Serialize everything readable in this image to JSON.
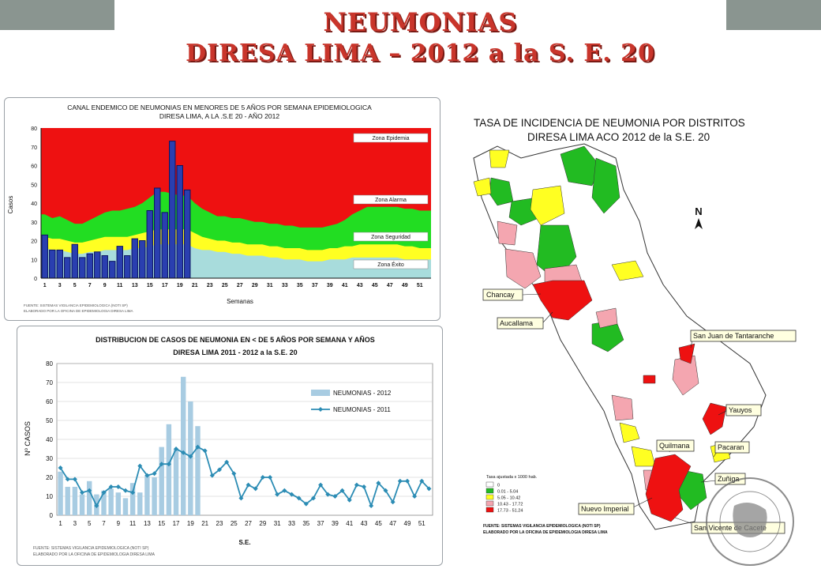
{
  "header": {
    "title_line1": "NEUMONIAS",
    "title_line2": "DIRESA LIMA – 2012 a la  S. E. 20"
  },
  "endemic_panel": {
    "source_line1": "FUENTE: SISTEMAS VIGILANCIA EPIDEMIOLOGICA (NOTI SP)",
    "source_line2": "ELABORADO POR LA OFICINA DE EPIDEMIOLOGIA DIRESA LIMA"
  },
  "distribution_panel": {
    "source_line1": "FUENTE: SISTEMAS VIGILANCIA EPIDEMIOLOGICA (NOTI SP)",
    "source_line2": "ELABORADO POR LA OFICINA DE EPIDEMIOLOGIA DIRESA LIMA"
  },
  "map_panel": {
    "title_line1": "TASA DE INCIDENCIA DE NEUMONIA POR DISTRITOS",
    "title_line2": "DIRESA LIMA ACO 2012 de la S.E. 20",
    "north_symbol": "N",
    "legend_title": "Tasa ajustada x 1000 hab.",
    "legend_items": [
      {
        "label": "0",
        "color": "#ffffff"
      },
      {
        "label": "0.01 - 5.04",
        "color": "#22bb22"
      },
      {
        "label": "5.05 - 10.42",
        "color": "#ffff22"
      },
      {
        "label": "10.43 - 17.72",
        "color": "#f4a6b0"
      },
      {
        "label": "17.73 - 51.24",
        "color": "#ee1111"
      }
    ],
    "source_line1": "FUENTE: SISTEMAS VIGILANCIA EPIDEMIOLOGICA (NOTI SP)",
    "source_line2": "ELABORADO POR LA OFICINA DE EPIDEMIOLOGIA DIRESA LIMA",
    "callouts": [
      "Chancay",
      "Aucallama",
      "San Juan de Tantaranche",
      "Yauyos",
      "Quilmana",
      "Pacaran",
      "Zuñiga",
      "Nuevo Imperial",
      "San Vicente de Cacete"
    ],
    "seal_text": "RED NACIONAL DE EPIDEMIOLOGIA – RENACE"
  },
  "chart_data": [
    {
      "type": "area",
      "title": "CANAL ENDEMICO DE NEUMONIAS EN MENORES DE 5 AÑOS POR SEMANA EPIDEMIOLOGICA\nDIRESA LIMA, A LA .S.E 20 - AÑO 2012",
      "xlabel": "Semanas",
      "ylabel": "Casos",
      "ylim": [
        0,
        80
      ],
      "yticks": [
        0,
        10,
        20,
        30,
        40,
        50,
        60,
        70,
        80
      ],
      "x_ticks": [
        "1",
        "3",
        "5",
        "7",
        "9",
        "11",
        "13",
        "15",
        "17",
        "19",
        "21",
        "23",
        "25",
        "27",
        "29",
        "31",
        "33",
        "35",
        "37",
        "39",
        "41",
        "43",
        "45",
        "47",
        "49",
        "51"
      ],
      "weeks": [
        1,
        2,
        3,
        4,
        5,
        6,
        7,
        8,
        9,
        10,
        11,
        12,
        13,
        14,
        15,
        16,
        17,
        18,
        19,
        20,
        21,
        22,
        23,
        24,
        25,
        26,
        27,
        28,
        29,
        30,
        31,
        32,
        33,
        34,
        35,
        36,
        37,
        38,
        39,
        40,
        41,
        42,
        43,
        44,
        45,
        46,
        47,
        48,
        49,
        50,
        51,
        52
      ],
      "zones": [
        {
          "name": "Zona Epidemia",
          "color": "#ee1111"
        },
        {
          "name": "Zona Alarma",
          "color": "#22dd22"
        },
        {
          "name": "Zona Seguridad",
          "color": "#ffff22"
        },
        {
          "name": "Zona Éxito",
          "color": "#a8dcdc"
        }
      ],
      "exito": [
        16,
        15,
        15,
        14,
        13,
        13,
        14,
        14,
        15,
        15,
        15,
        15,
        16,
        16,
        17,
        18,
        18,
        18,
        18,
        18,
        16,
        15,
        15,
        14,
        14,
        13,
        13,
        12,
        12,
        12,
        11,
        11,
        10,
        10,
        10,
        9,
        9,
        9,
        10,
        10,
        10,
        11,
        11,
        11,
        11,
        11,
        11,
        11,
        10,
        10,
        10,
        10
      ],
      "seguridad": [
        22,
        21,
        21,
        20,
        19,
        19,
        20,
        21,
        22,
        22,
        22,
        22,
        23,
        24,
        25,
        26,
        26,
        26,
        26,
        26,
        24,
        22,
        21,
        20,
        20,
        19,
        19,
        18,
        18,
        18,
        17,
        17,
        16,
        16,
        16,
        15,
        15,
        15,
        16,
        16,
        17,
        17,
        18,
        18,
        18,
        18,
        18,
        18,
        17,
        17,
        16,
        16
      ],
      "alarma": [
        34,
        32,
        33,
        31,
        29,
        29,
        31,
        33,
        35,
        36,
        36,
        37,
        38,
        40,
        43,
        46,
        46,
        45,
        44,
        44,
        40,
        37,
        35,
        33,
        33,
        32,
        32,
        31,
        30,
        30,
        29,
        29,
        28,
        28,
        27,
        27,
        27,
        27,
        28,
        29,
        31,
        34,
        36,
        38,
        38,
        38,
        38,
        38,
        37,
        37,
        36,
        36
      ],
      "series": [
        {
          "name": "2012",
          "values": [
            23,
            15,
            15,
            11,
            18,
            11,
            13,
            14,
            12,
            9,
            17,
            12,
            21,
            20,
            36,
            48,
            35,
            73,
            60,
            47
          ]
        }
      ]
    },
    {
      "type": "bar",
      "title": "DISTRIBUCION DE CASOS DE NEUMONIA EN < DE 5 AÑOS POR SEMANA Y AÑOS\nDIRESA LIMA  2011 - 2012  a la S.E. 20",
      "xlabel": "S.E.",
      "ylabel": "Nº CASOS",
      "ylim": [
        0,
        80
      ],
      "yticks": [
        0,
        10,
        20,
        30,
        40,
        50,
        60,
        70,
        80
      ],
      "x_ticks": [
        "1",
        "3",
        "5",
        "7",
        "9",
        "11",
        "13",
        "15",
        "17",
        "19",
        "21",
        "23",
        "25",
        "27",
        "29",
        "31",
        "33",
        "35",
        "37",
        "39",
        "41",
        "43",
        "45",
        "47",
        "49",
        "51"
      ],
      "weeks": [
        1,
        2,
        3,
        4,
        5,
        6,
        7,
        8,
        9,
        10,
        11,
        12,
        13,
        14,
        15,
        16,
        17,
        18,
        19,
        20,
        21,
        22,
        23,
        24,
        25,
        26,
        27,
        28,
        29,
        30,
        31,
        32,
        33,
        34,
        35,
        36,
        37,
        38,
        39,
        40,
        41,
        42,
        43,
        44,
        45,
        46,
        47,
        48,
        49,
        50,
        51,
        52
      ],
      "series": [
        {
          "name": "NEUMONIAS - 2012",
          "kind": "bar",
          "color": "#a8cce2",
          "values": [
            23,
            15,
            15,
            11,
            18,
            11,
            13,
            14,
            12,
            9,
            17,
            12,
            21,
            20,
            36,
            48,
            35,
            73,
            60,
            47
          ]
        },
        {
          "name": "NEUMONIAS - 2011",
          "kind": "line",
          "color": "#2b8cb4",
          "values": [
            25,
            19,
            19,
            12,
            13,
            5,
            12,
            15,
            15,
            13,
            12,
            26,
            21,
            22,
            27,
            27,
            35,
            33,
            31,
            36,
            34,
            21,
            24,
            28,
            22,
            9,
            16,
            14,
            20,
            20,
            11,
            13,
            11,
            9,
            6,
            9,
            16,
            11,
            10,
            13,
            8,
            16,
            15,
            5,
            17,
            13,
            7,
            18,
            18,
            10,
            18,
            14
          ]
        }
      ]
    }
  ]
}
